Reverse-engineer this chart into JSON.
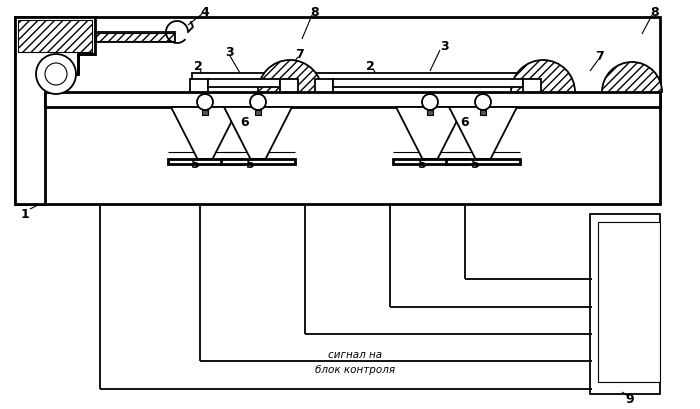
{
  "bg_color": "#ffffff",
  "lc": "#000000",
  "signal_line1": "сигнал на",
  "signal_line2": "блок контроля",
  "lw_thin": 0.8,
  "lw_med": 1.3,
  "lw_thick": 2.0
}
